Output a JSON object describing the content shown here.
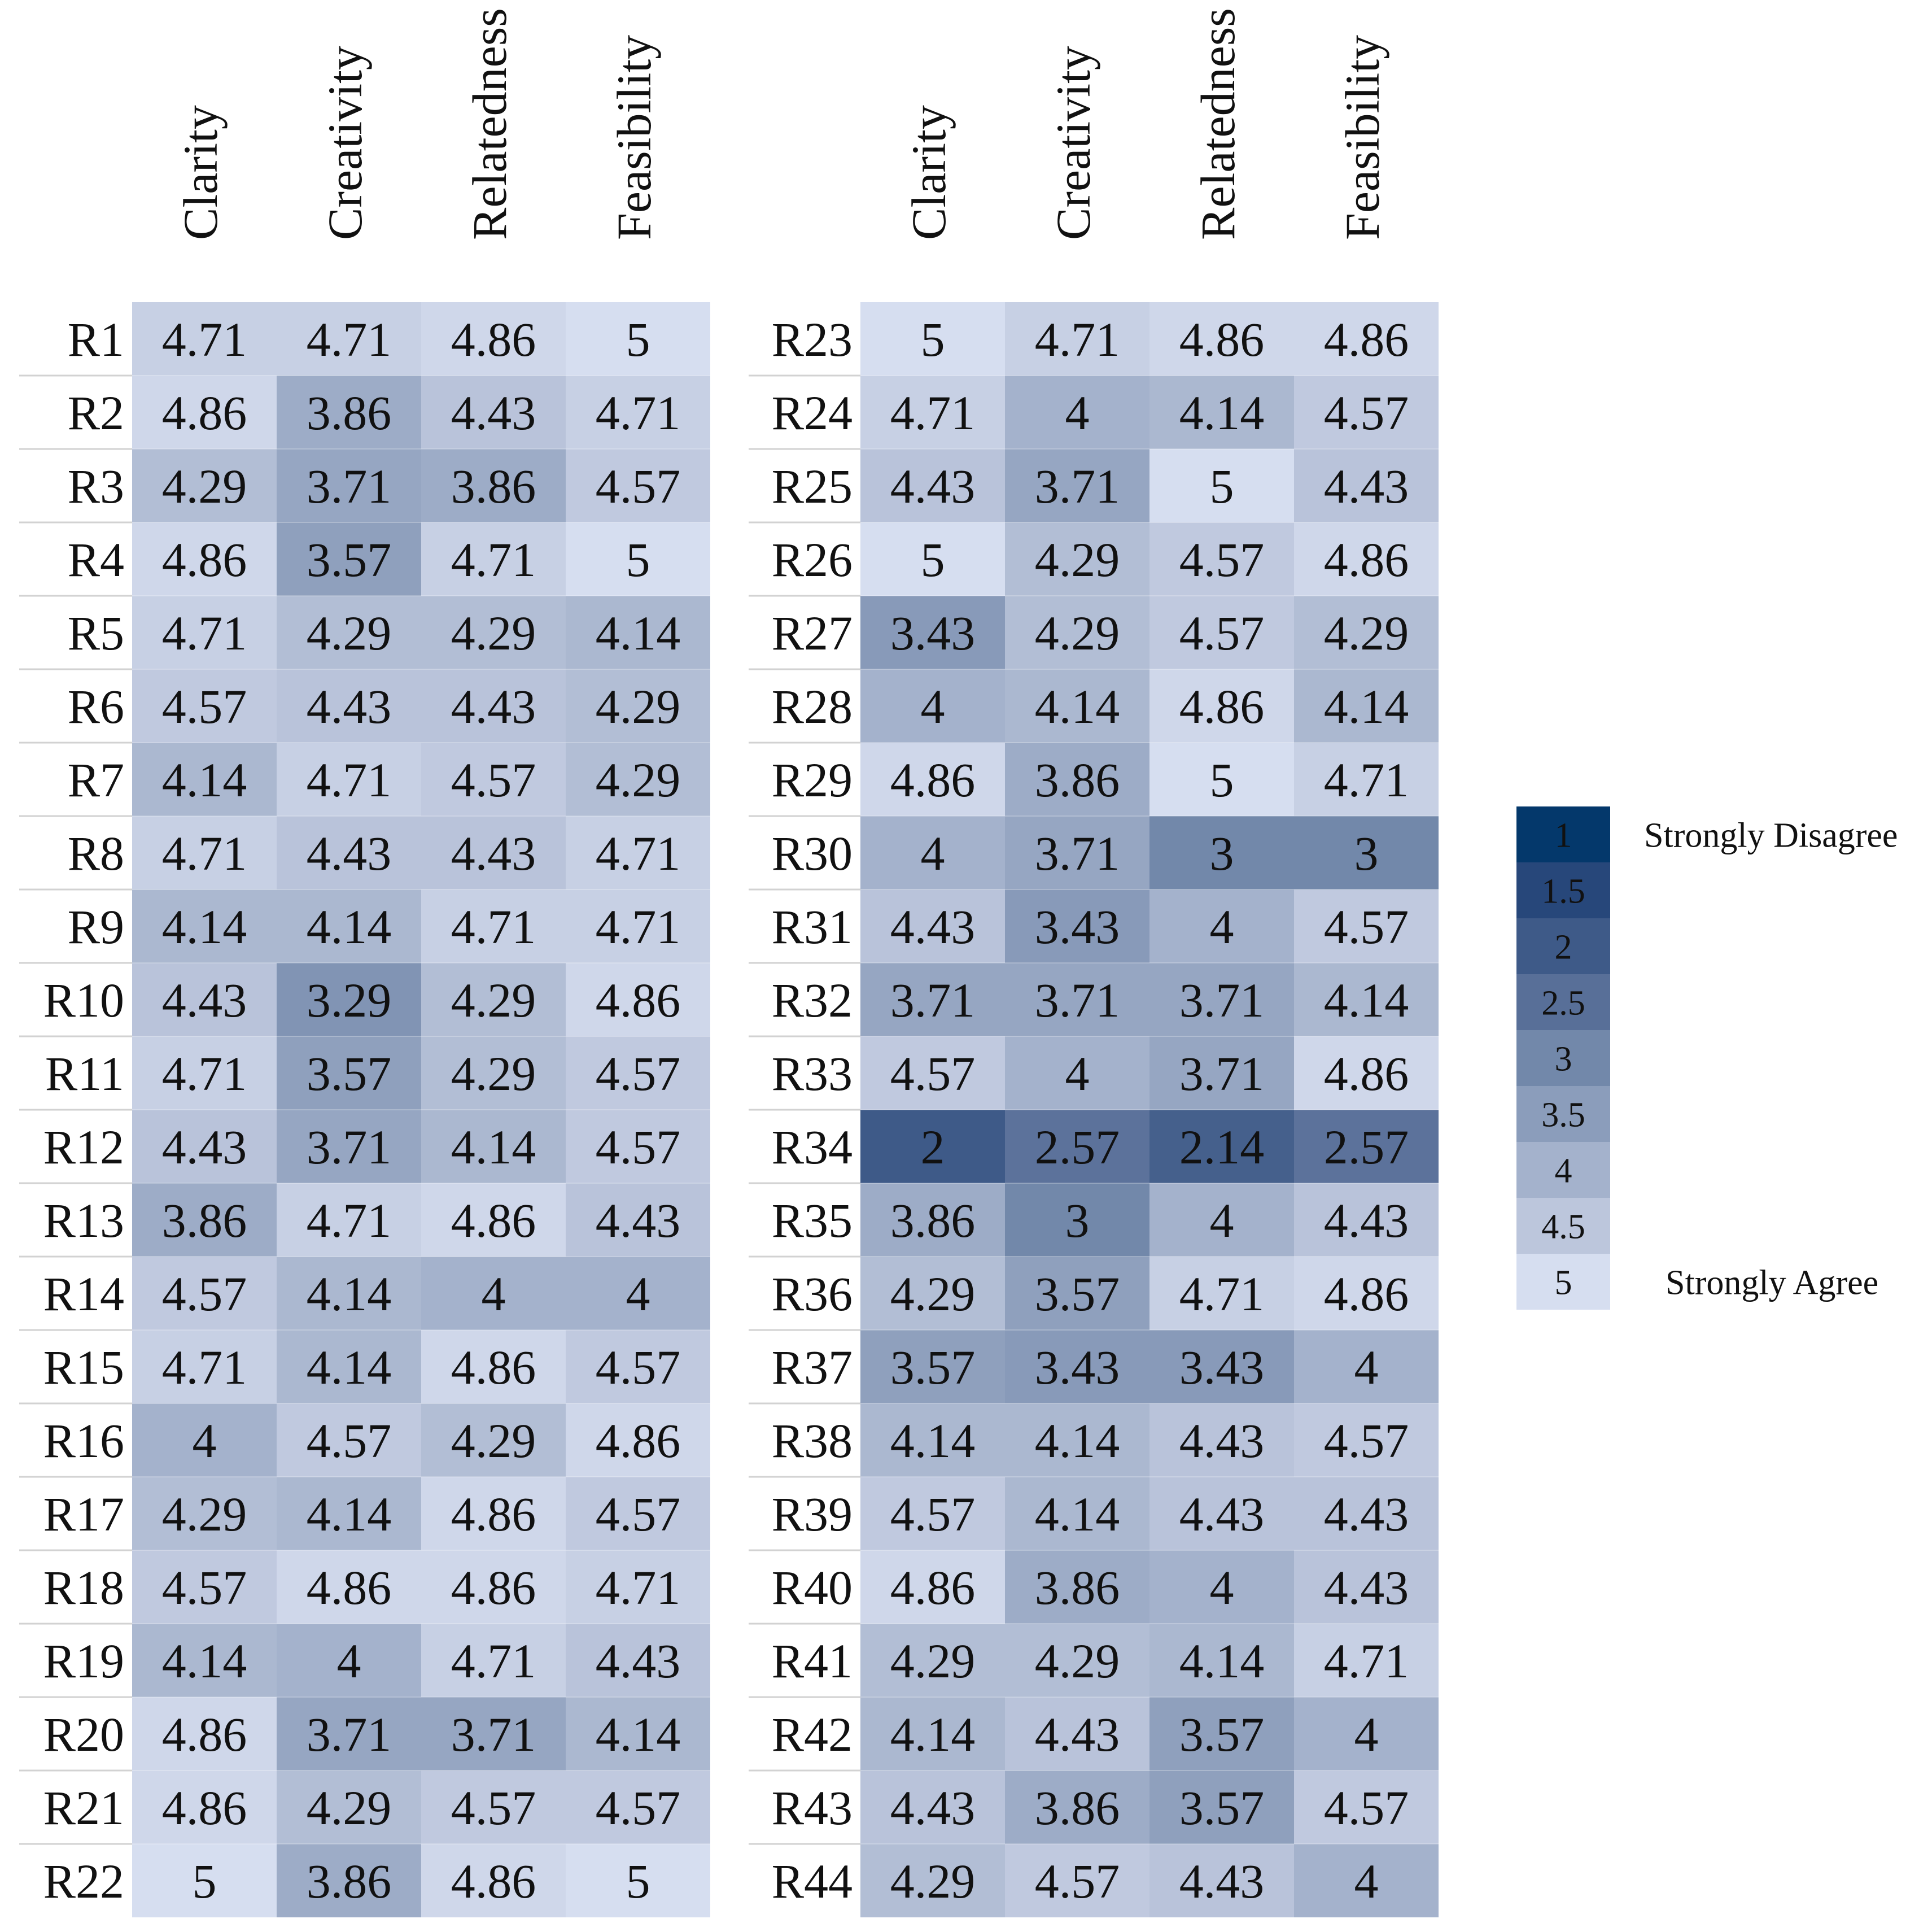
{
  "chart_data": {
    "type": "heatmap",
    "columns": [
      "Clarity",
      "Creativity",
      "Relatedness",
      "Feasibility"
    ],
    "blocks": [
      {
        "rows": [
          "R1",
          "R2",
          "R3",
          "R4",
          "R5",
          "R6",
          "R7",
          "R8",
          "R9",
          "R10",
          "R11",
          "R12",
          "R13",
          "R14",
          "R15",
          "R16",
          "R17",
          "R18",
          "R19",
          "R20",
          "R21",
          "R22"
        ],
        "values": [
          [
            "4.71",
            "4.71",
            "4.86",
            "5"
          ],
          [
            "4.86",
            "3.86",
            "4.43",
            "4.71"
          ],
          [
            "4.29",
            "3.71",
            "3.86",
            "4.57"
          ],
          [
            "4.86",
            "3.57",
            "4.71",
            "5"
          ],
          [
            "4.71",
            "4.29",
            "4.29",
            "4.14"
          ],
          [
            "4.57",
            "4.43",
            "4.43",
            "4.29"
          ],
          [
            "4.14",
            "4.71",
            "4.57",
            "4.29"
          ],
          [
            "4.71",
            "4.43",
            "4.43",
            "4.71"
          ],
          [
            "4.14",
            "4.14",
            "4.71",
            "4.71"
          ],
          [
            "4.43",
            "3.29",
            "4.29",
            "4.86"
          ],
          [
            "4.71",
            "3.57",
            "4.29",
            "4.57"
          ],
          [
            "4.43",
            "3.71",
            "4.14",
            "4.57"
          ],
          [
            "3.86",
            "4.71",
            "4.86",
            "4.43"
          ],
          [
            "4.57",
            "4.14",
            "4",
            "4"
          ],
          [
            "4.71",
            "4.14",
            "4.86",
            "4.57"
          ],
          [
            "4",
            "4.57",
            "4.29",
            "4.86"
          ],
          [
            "4.29",
            "4.14",
            "4.86",
            "4.57"
          ],
          [
            "4.57",
            "4.86",
            "4.86",
            "4.71"
          ],
          [
            "4.14",
            "4",
            "4.71",
            "4.43"
          ],
          [
            "4.86",
            "3.71",
            "3.71",
            "4.14"
          ],
          [
            "4.86",
            "4.29",
            "4.57",
            "4.57"
          ],
          [
            "5",
            "3.86",
            "4.86",
            "5"
          ]
        ]
      },
      {
        "rows": [
          "R23",
          "R24",
          "R25",
          "R26",
          "R27",
          "R28",
          "R29",
          "R30",
          "R31",
          "R32",
          "R33",
          "R34",
          "R35",
          "R36",
          "R37",
          "R38",
          "R39",
          "R40",
          "R41",
          "R42",
          "R43",
          "R44"
        ],
        "values": [
          [
            "5",
            "4.71",
            "4.86",
            "4.86"
          ],
          [
            "4.71",
            "4",
            "4.14",
            "4.57"
          ],
          [
            "4.43",
            "3.71",
            "5",
            "4.43"
          ],
          [
            "5",
            "4.29",
            "4.57",
            "4.86"
          ],
          [
            "3.43",
            "4.29",
            "4.57",
            "4.29"
          ],
          [
            "4",
            "4.14",
            "4.86",
            "4.14"
          ],
          [
            "4.86",
            "3.86",
            "5",
            "4.71"
          ],
          [
            "4",
            "3.71",
            "3",
            "3"
          ],
          [
            "4.43",
            "3.43",
            "4",
            "4.57"
          ],
          [
            "3.71",
            "3.71",
            "3.71",
            "4.14"
          ],
          [
            "4.57",
            "4",
            "3.71",
            "4.86"
          ],
          [
            "2",
            "2.57",
            "2.14",
            "2.57"
          ],
          [
            "3.86",
            "3",
            "4",
            "4.43"
          ],
          [
            "4.29",
            "3.57",
            "4.71",
            "4.86"
          ],
          [
            "3.57",
            "3.43",
            "3.43",
            "4"
          ],
          [
            "4.14",
            "4.14",
            "4.43",
            "4.57"
          ],
          [
            "4.57",
            "4.14",
            "4.43",
            "4.43"
          ],
          [
            "4.86",
            "3.86",
            "4",
            "4.43"
          ],
          [
            "4.29",
            "4.29",
            "4.14",
            "4.71"
          ],
          [
            "4.14",
            "4.43",
            "3.57",
            "4"
          ],
          [
            "4.43",
            "3.86",
            "3.57",
            "4.57"
          ],
          [
            "4.29",
            "4.57",
            "4.43",
            "4"
          ]
        ]
      }
    ],
    "colorscale": {
      "stops": [
        "1",
        "1.5",
        "2",
        "2.5",
        "3",
        "3.5",
        "4",
        "4.5",
        "5"
      ],
      "colors": [
        "#04386B",
        "#27477A",
        "#3E5A88",
        "#586F98",
        "#7288AA",
        "#8B9DBB",
        "#A4B2CC",
        "#BCC6DC",
        "#D6DEF0"
      ],
      "range": [
        1,
        5
      ],
      "label_low": "Strongly Disagree",
      "label_high": "Strongly Agree",
      "placement": "right"
    }
  }
}
